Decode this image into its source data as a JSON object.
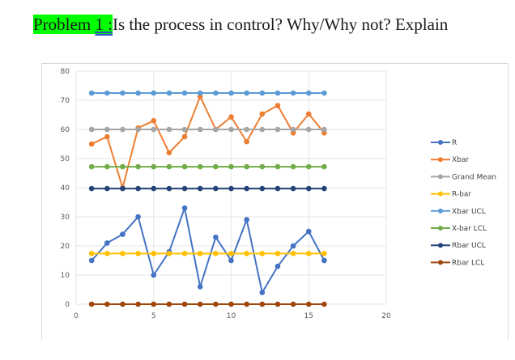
{
  "heading": {
    "prefix": "Problem ",
    "number": "1 :",
    "question": "Is the process in control? Why/Why not? Explain"
  },
  "colors": {
    "heading_highlight": "#00ff00"
  },
  "chart_data": {
    "type": "line",
    "title": "",
    "xlabel": "",
    "ylabel": "",
    "xlim": [
      0,
      20
    ],
    "ylim": [
      0,
      80
    ],
    "x_ticks": [
      0,
      5,
      10,
      15,
      20
    ],
    "y_ticks": [
      0,
      10,
      20,
      30,
      40,
      50,
      60,
      70,
      80
    ],
    "grid": true,
    "legend_position": "right",
    "x": [
      1,
      2,
      3,
      4,
      5,
      6,
      7,
      8,
      9,
      10,
      11,
      12,
      13,
      14,
      15,
      16
    ],
    "series": [
      {
        "name": "R",
        "color": "#4472c4",
        "values": [
          15,
          21,
          24,
          30,
          10,
          18,
          33,
          6,
          23,
          15,
          29,
          4,
          13,
          20,
          25,
          15
        ]
      },
      {
        "name": "Xbar",
        "color": "#ed7d31",
        "values": [
          55,
          57.5,
          40,
          60.5,
          63,
          52,
          57.5,
          71.3,
          60,
          64.3,
          55.8,
          65.3,
          68.2,
          58.8,
          65.3,
          58.8
        ]
      },
      {
        "name": "Grand Mean",
        "color": "#a5a5a5",
        "values": [
          60,
          60,
          60,
          60,
          60,
          60,
          60,
          60,
          60,
          60,
          60,
          60,
          60,
          60,
          60,
          60
        ]
      },
      {
        "name": "R-bar",
        "color": "#ffc000",
        "values": [
          17.4,
          17.4,
          17.4,
          17.4,
          17.4,
          17.4,
          17.4,
          17.4,
          17.4,
          17.4,
          17.4,
          17.4,
          17.4,
          17.4,
          17.4,
          17.4
        ]
      },
      {
        "name": "Xbar UCL",
        "color": "#5b9bd5",
        "values": [
          72.5,
          72.5,
          72.5,
          72.5,
          72.5,
          72.5,
          72.5,
          72.5,
          72.5,
          72.5,
          72.5,
          72.5,
          72.5,
          72.5,
          72.5,
          72.5
        ]
      },
      {
        "name": "X-bar LCL",
        "color": "#70ad47",
        "values": [
          47.2,
          47.2,
          47.2,
          47.2,
          47.2,
          47.2,
          47.2,
          47.2,
          47.2,
          47.2,
          47.2,
          47.2,
          47.2,
          47.2,
          47.2,
          47.2
        ]
      },
      {
        "name": "Rbar UCL",
        "color": "#264478",
        "values": [
          39.7,
          39.7,
          39.7,
          39.7,
          39.7,
          39.7,
          39.7,
          39.7,
          39.7,
          39.7,
          39.7,
          39.7,
          39.7,
          39.7,
          39.7,
          39.7
        ]
      },
      {
        "name": "Rbar LCL",
        "color": "#9e480e",
        "values": [
          0,
          0,
          0,
          0,
          0,
          0,
          0,
          0,
          0,
          0,
          0,
          0,
          0,
          0,
          0,
          0
        ]
      }
    ]
  }
}
